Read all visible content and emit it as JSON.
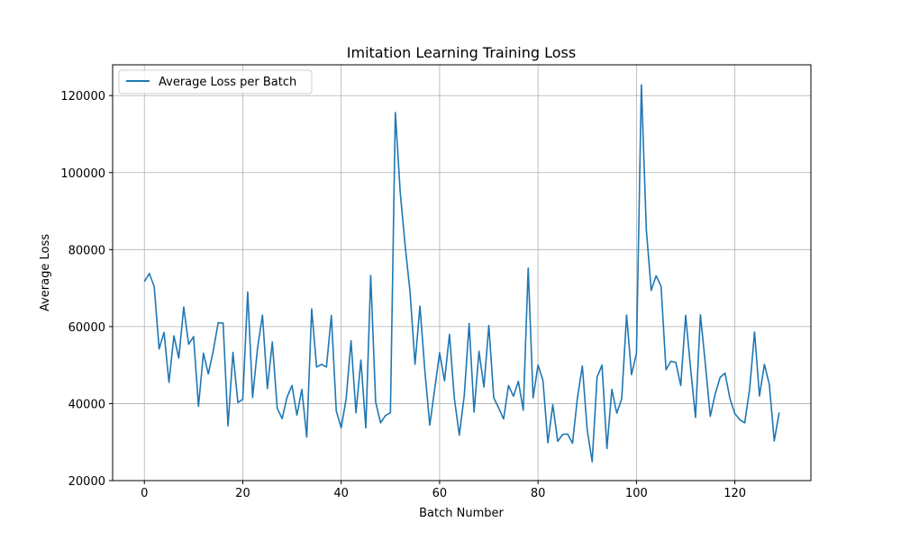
{
  "chart_data": {
    "type": "line",
    "title": "Imitation Learning Training Loss",
    "xlabel": "Batch Number",
    "ylabel": "Average Loss",
    "xlim": [
      -6.45,
      135.45
    ],
    "ylim": [
      20000,
      128000
    ],
    "xticks": [
      0,
      20,
      40,
      60,
      80,
      100,
      120
    ],
    "yticks": [
      20000,
      40000,
      60000,
      80000,
      100000,
      120000
    ],
    "grid": true,
    "legend_position": "top-left",
    "series": [
      {
        "name": "Average Loss per Batch",
        "color": "#1f77b4",
        "x": [
          0,
          1,
          2,
          3,
          4,
          5,
          6,
          7,
          8,
          9,
          10,
          11,
          12,
          13,
          14,
          15,
          16,
          17,
          18,
          19,
          20,
          21,
          22,
          23,
          24,
          25,
          26,
          27,
          28,
          29,
          30,
          31,
          32,
          33,
          34,
          35,
          36,
          37,
          38,
          39,
          40,
          41,
          42,
          43,
          44,
          45,
          46,
          47,
          48,
          49,
          50,
          51,
          52,
          53,
          54,
          55,
          56,
          57,
          58,
          59,
          60,
          61,
          62,
          63,
          64,
          65,
          66,
          67,
          68,
          69,
          70,
          71,
          72,
          73,
          74,
          75,
          76,
          77,
          78,
          79,
          80,
          81,
          82,
          83,
          84,
          85,
          86,
          87,
          88,
          89,
          90,
          91,
          92,
          93,
          94,
          95,
          96,
          97,
          98,
          99,
          100,
          101,
          102,
          103,
          104,
          105,
          106,
          107,
          108,
          109,
          110,
          111,
          112,
          113,
          114,
          115,
          116,
          117,
          118,
          119,
          120,
          121,
          122,
          123,
          124,
          125,
          126,
          127,
          128,
          129
        ],
        "values": [
          71700,
          73800,
          70400,
          54200,
          58500,
          45500,
          57600,
          51800,
          65100,
          55400,
          57400,
          39300,
          53100,
          47700,
          53700,
          61000,
          60900,
          34200,
          53300,
          40300,
          41100,
          69000,
          41600,
          54400,
          63000,
          43900,
          56000,
          38800,
          36100,
          41700,
          44700,
          37000,
          43700,
          31300,
          64600,
          49500,
          50200,
          49500,
          62900,
          38100,
          33700,
          41200,
          56300,
          37600,
          51300,
          33700,
          73300,
          40400,
          35000,
          36900,
          37600,
          115600,
          94800,
          81000,
          68900,
          50200,
          65300,
          48600,
          34400,
          43800,
          53200,
          45900,
          58000,
          41300,
          31800,
          42000,
          60800,
          37800,
          53600,
          44300,
          60300,
          41500,
          38900,
          36000,
          44700,
          41900,
          45800,
          38300,
          75200,
          41500,
          50000,
          46000,
          29800,
          39700,
          30200,
          32000,
          32100,
          29700,
          41400,
          49800,
          33100,
          24900,
          46900,
          50000,
          28300,
          43700,
          37500,
          41200,
          63000,
          47500,
          53000,
          122800,
          85300,
          69400,
          73200,
          70500,
          48800,
          51000,
          50700,
          44700,
          62900,
          49200,
          36400,
          63100,
          50300,
          36700,
          42500,
          46800,
          47900,
          41300,
          37400,
          35800,
          35000,
          43800,
          58600,
          42000,
          50200,
          45000,
          30300,
          37700
        ]
      }
    ]
  }
}
